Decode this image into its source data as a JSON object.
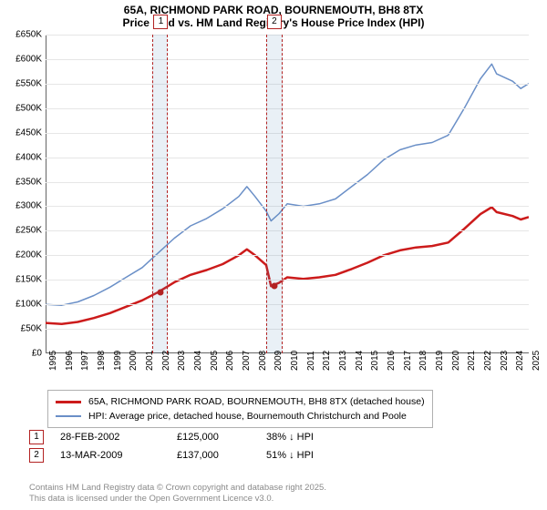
{
  "title_line1": "65A, RICHMOND PARK ROAD, BOURNEMOUTH, BH8 8TX",
  "title_line2": "Price paid vs. HM Land Registry's House Price Index (HPI)",
  "chart": {
    "type": "line",
    "xlim": [
      1995,
      2025
    ],
    "ylim": [
      0,
      650000
    ],
    "ytick_step": 50000,
    "yticks": [
      "£0",
      "£50K",
      "£100K",
      "£150K",
      "£200K",
      "£250K",
      "£300K",
      "£350K",
      "£400K",
      "£450K",
      "£500K",
      "£550K",
      "£600K",
      "£650K"
    ],
    "xticks": [
      1995,
      1996,
      1997,
      1998,
      1999,
      2000,
      2001,
      2002,
      2003,
      2004,
      2005,
      2006,
      2007,
      2008,
      2009,
      2010,
      2011,
      2012,
      2013,
      2014,
      2015,
      2016,
      2017,
      2018,
      2019,
      2020,
      2021,
      2022,
      2023,
      2024,
      2025
    ],
    "background_color": "#ffffff",
    "grid_color": "#e6e6e6",
    "series": {
      "hpi": {
        "color": "#6a8fc7",
        "line_width": 1.5,
        "label": "HPI: Average price, detached house, Bournemouth Christchurch and Poole",
        "points": [
          [
            1995,
            100000
          ],
          [
            1996,
            98000
          ],
          [
            1997,
            105000
          ],
          [
            1998,
            118000
          ],
          [
            1999,
            135000
          ],
          [
            2000,
            155000
          ],
          [
            2001,
            175000
          ],
          [
            2002,
            205000
          ],
          [
            2003,
            235000
          ],
          [
            2004,
            260000
          ],
          [
            2005,
            275000
          ],
          [
            2006,
            295000
          ],
          [
            2007,
            320000
          ],
          [
            2007.5,
            340000
          ],
          [
            2008,
            320000
          ],
          [
            2008.7,
            290000
          ],
          [
            2009,
            270000
          ],
          [
            2009.5,
            285000
          ],
          [
            2010,
            305000
          ],
          [
            2011,
            300000
          ],
          [
            2012,
            305000
          ],
          [
            2013,
            315000
          ],
          [
            2014,
            340000
          ],
          [
            2015,
            365000
          ],
          [
            2016,
            395000
          ],
          [
            2017,
            415000
          ],
          [
            2018,
            425000
          ],
          [
            2019,
            430000
          ],
          [
            2020,
            445000
          ],
          [
            2021,
            500000
          ],
          [
            2022,
            560000
          ],
          [
            2022.7,
            590000
          ],
          [
            2023,
            570000
          ],
          [
            2024,
            555000
          ],
          [
            2024.5,
            540000
          ],
          [
            2025,
            550000
          ]
        ]
      },
      "property": {
        "color": "#cc1b1b",
        "line_width": 2.5,
        "label": "65A, RICHMOND PARK ROAD, BOURNEMOUTH, BH8 8TX (detached house)",
        "points": [
          [
            1995,
            62000
          ],
          [
            1996,
            60000
          ],
          [
            1997,
            64000
          ],
          [
            1998,
            72000
          ],
          [
            1999,
            82000
          ],
          [
            2000,
            95000
          ],
          [
            2001,
            108000
          ],
          [
            2002,
            125000
          ],
          [
            2003,
            145000
          ],
          [
            2004,
            160000
          ],
          [
            2005,
            170000
          ],
          [
            2006,
            182000
          ],
          [
            2007,
            200000
          ],
          [
            2007.5,
            212000
          ],
          [
            2008,
            200000
          ],
          [
            2008.7,
            180000
          ],
          [
            2009,
            137000
          ],
          [
            2009.5,
            144000
          ],
          [
            2010,
            155000
          ],
          [
            2011,
            152000
          ],
          [
            2012,
            155000
          ],
          [
            2013,
            160000
          ],
          [
            2014,
            172000
          ],
          [
            2015,
            185000
          ],
          [
            2016,
            200000
          ],
          [
            2017,
            210000
          ],
          [
            2018,
            216000
          ],
          [
            2019,
            219000
          ],
          [
            2020,
            226000
          ],
          [
            2021,
            254000
          ],
          [
            2022,
            284000
          ],
          [
            2022.7,
            298000
          ],
          [
            2023,
            288000
          ],
          [
            2024,
            280000
          ],
          [
            2024.5,
            273000
          ],
          [
            2025,
            278000
          ]
        ]
      }
    },
    "shaded_bands": [
      {
        "start": 2001.6,
        "end": 2002.5
      },
      {
        "start": 2008.7,
        "end": 2009.6
      }
    ],
    "sale_markers": [
      {
        "num": "1",
        "x": 2002.16,
        "y": 125000
      },
      {
        "num": "2",
        "x": 2009.2,
        "y": 137000
      }
    ]
  },
  "sales": [
    {
      "num": "1",
      "date": "28-FEB-2002",
      "price": "£125,000",
      "delta": "38% ↓ HPI"
    },
    {
      "num": "2",
      "date": "13-MAR-2009",
      "price": "£137,000",
      "delta": "51% ↓ HPI"
    }
  ],
  "footer_line1": "Contains HM Land Registry data © Crown copyright and database right 2025.",
  "footer_line2": "This data is licensed under the Open Government Licence v3.0."
}
